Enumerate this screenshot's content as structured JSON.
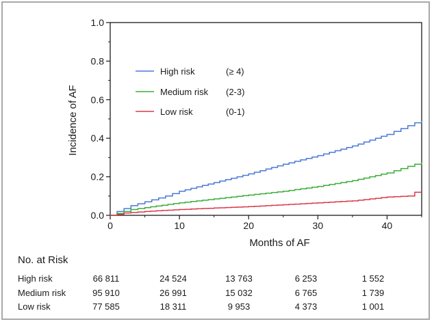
{
  "chart_data": {
    "type": "line",
    "step": true,
    "xlabel": "Months of AF",
    "ylabel": "Incidence of AF",
    "xlim": [
      0,
      45
    ],
    "ylim": [
      0,
      1.0
    ],
    "x_ticks": [
      0,
      10,
      20,
      30,
      40
    ],
    "x_tick_labels": [
      "0",
      "10",
      "20",
      "30",
      "40"
    ],
    "y_ticks": [
      0,
      0.2,
      0.4,
      0.6,
      0.8,
      1.0
    ],
    "y_tick_labels": [
      "0.0",
      "0.2",
      "0.4",
      "0.6",
      "0.8",
      "1.0"
    ],
    "grid": false,
    "legend_position": "top-left",
    "series": [
      {
        "name": "High risk",
        "range": "(≥ 4)",
        "color": "#4a78d6",
        "x": [
          0,
          1,
          2,
          3,
          5,
          8,
          10,
          15,
          20,
          25,
          30,
          35,
          40,
          44,
          45
        ],
        "y": [
          0,
          0.02,
          0.035,
          0.05,
          0.07,
          0.1,
          0.125,
          0.17,
          0.215,
          0.265,
          0.31,
          0.36,
          0.42,
          0.48,
          0.49
        ]
      },
      {
        "name": "Medium risk",
        "range": "(2-3)",
        "color": "#3aad3a",
        "x": [
          0,
          1,
          2,
          3,
          5,
          10,
          15,
          20,
          25,
          30,
          35,
          40,
          44,
          45
        ],
        "y": [
          0,
          0.01,
          0.02,
          0.03,
          0.04,
          0.065,
          0.085,
          0.105,
          0.125,
          0.15,
          0.18,
          0.22,
          0.265,
          0.275
        ]
      },
      {
        "name": "Low risk",
        "range": "(0-1)",
        "color": "#d93a4a",
        "x": [
          0,
          1,
          2,
          5,
          10,
          15,
          20,
          25,
          30,
          35,
          40,
          43,
          44,
          45
        ],
        "y": [
          0,
          0.005,
          0.012,
          0.02,
          0.03,
          0.038,
          0.045,
          0.055,
          0.065,
          0.075,
          0.095,
          0.1,
          0.12,
          0.12
        ]
      }
    ]
  },
  "risk_table": {
    "title": "No. at Risk",
    "rows": [
      {
        "label": "High risk",
        "values": [
          "66 811",
          "24 524",
          "13 763",
          "6 253",
          "1 552"
        ]
      },
      {
        "label": "Medium risk",
        "values": [
          "95 910",
          "26 991",
          "15 032",
          "6 765",
          "1 739"
        ]
      },
      {
        "label": "Low risk",
        "values": [
          "77 585",
          "18 311",
          "9 953",
          "4 373",
          "1 001"
        ]
      }
    ]
  }
}
